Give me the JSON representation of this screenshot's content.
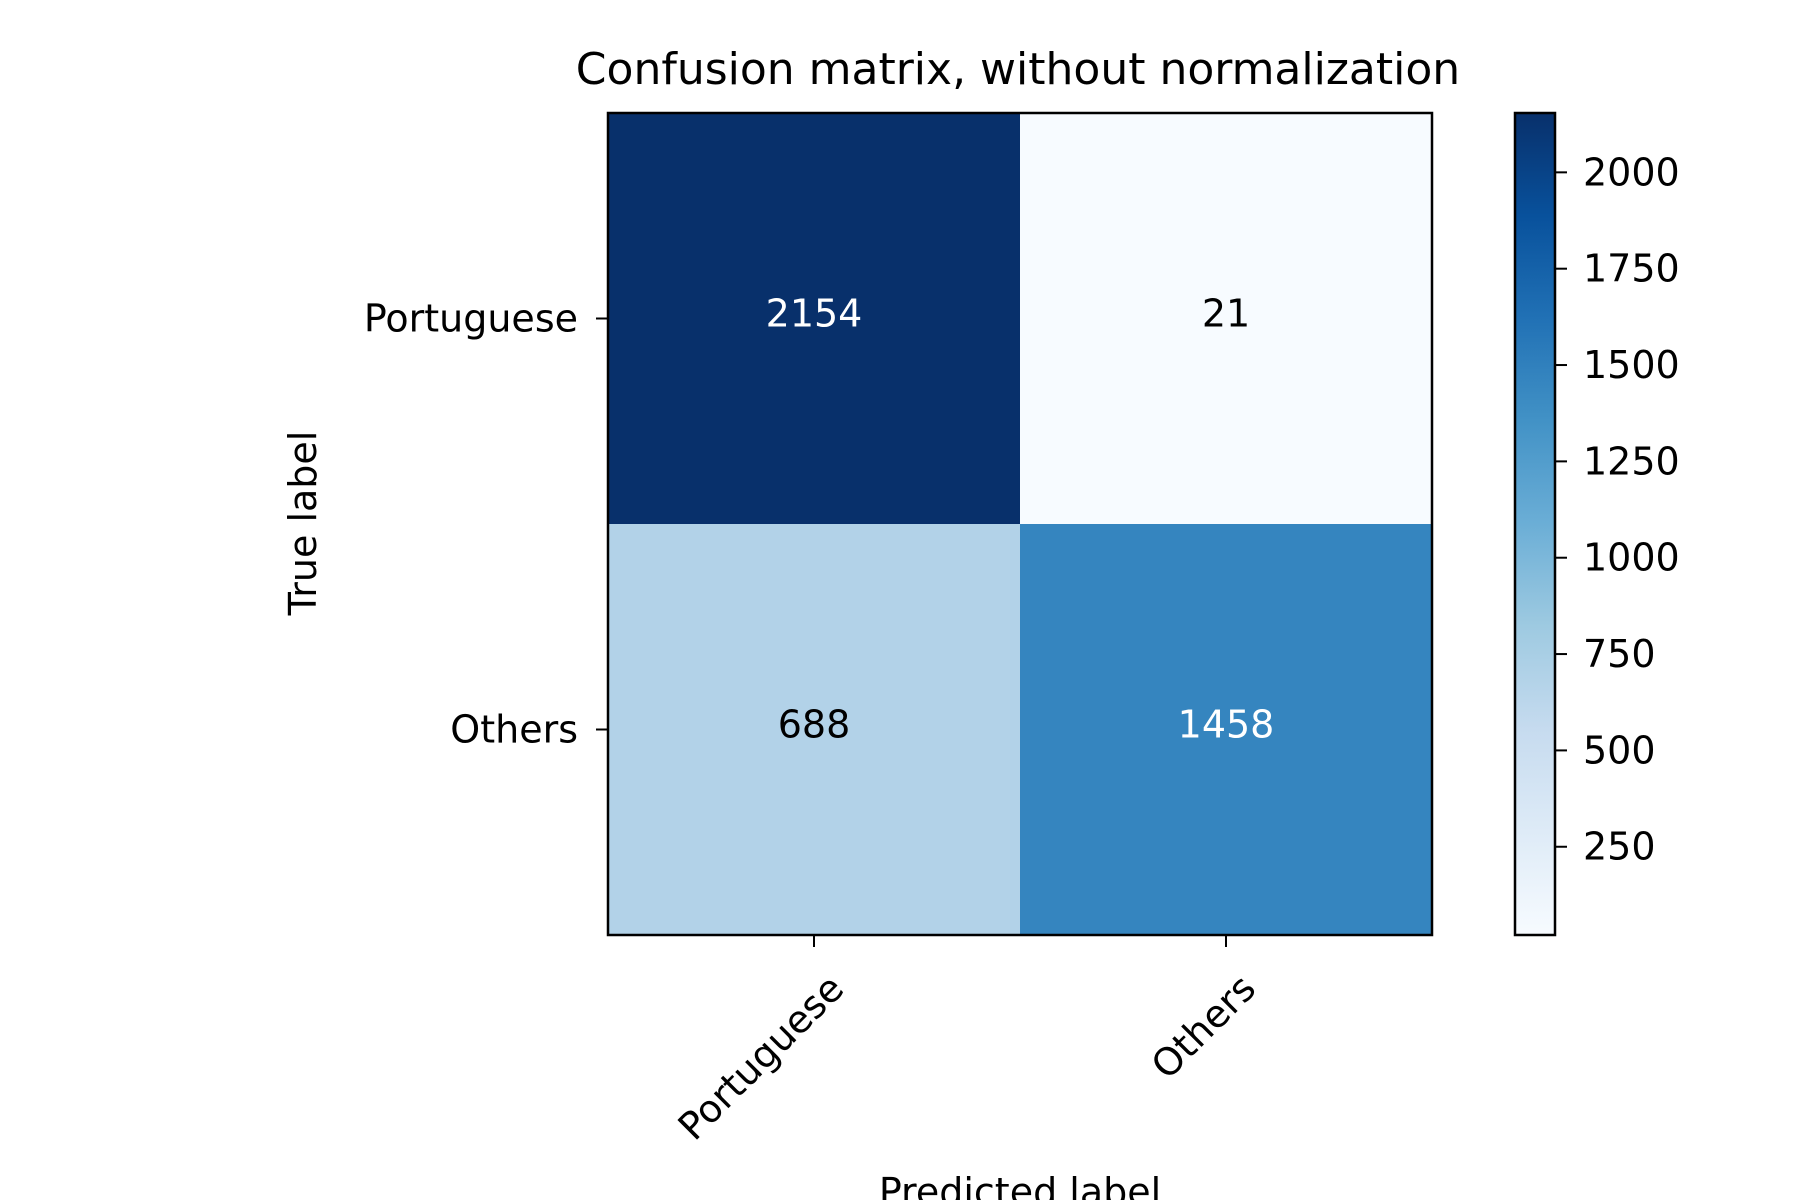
{
  "chart_data": {
    "type": "heatmap",
    "title": "Confusion matrix, without normalization",
    "xlabel": "Predicted label",
    "ylabel": "True label",
    "x_categories": [
      "Portuguese",
      "Others"
    ],
    "y_categories": [
      "Portuguese",
      "Others"
    ],
    "values": [
      [
        2154,
        21
      ],
      [
        688,
        1458
      ]
    ],
    "colormap": "Blues",
    "color_range": [
      21,
      2154
    ],
    "colorbar_ticks": [
      250,
      500,
      750,
      1000,
      1250,
      1500,
      1750,
      2000
    ],
    "grid": false
  }
}
